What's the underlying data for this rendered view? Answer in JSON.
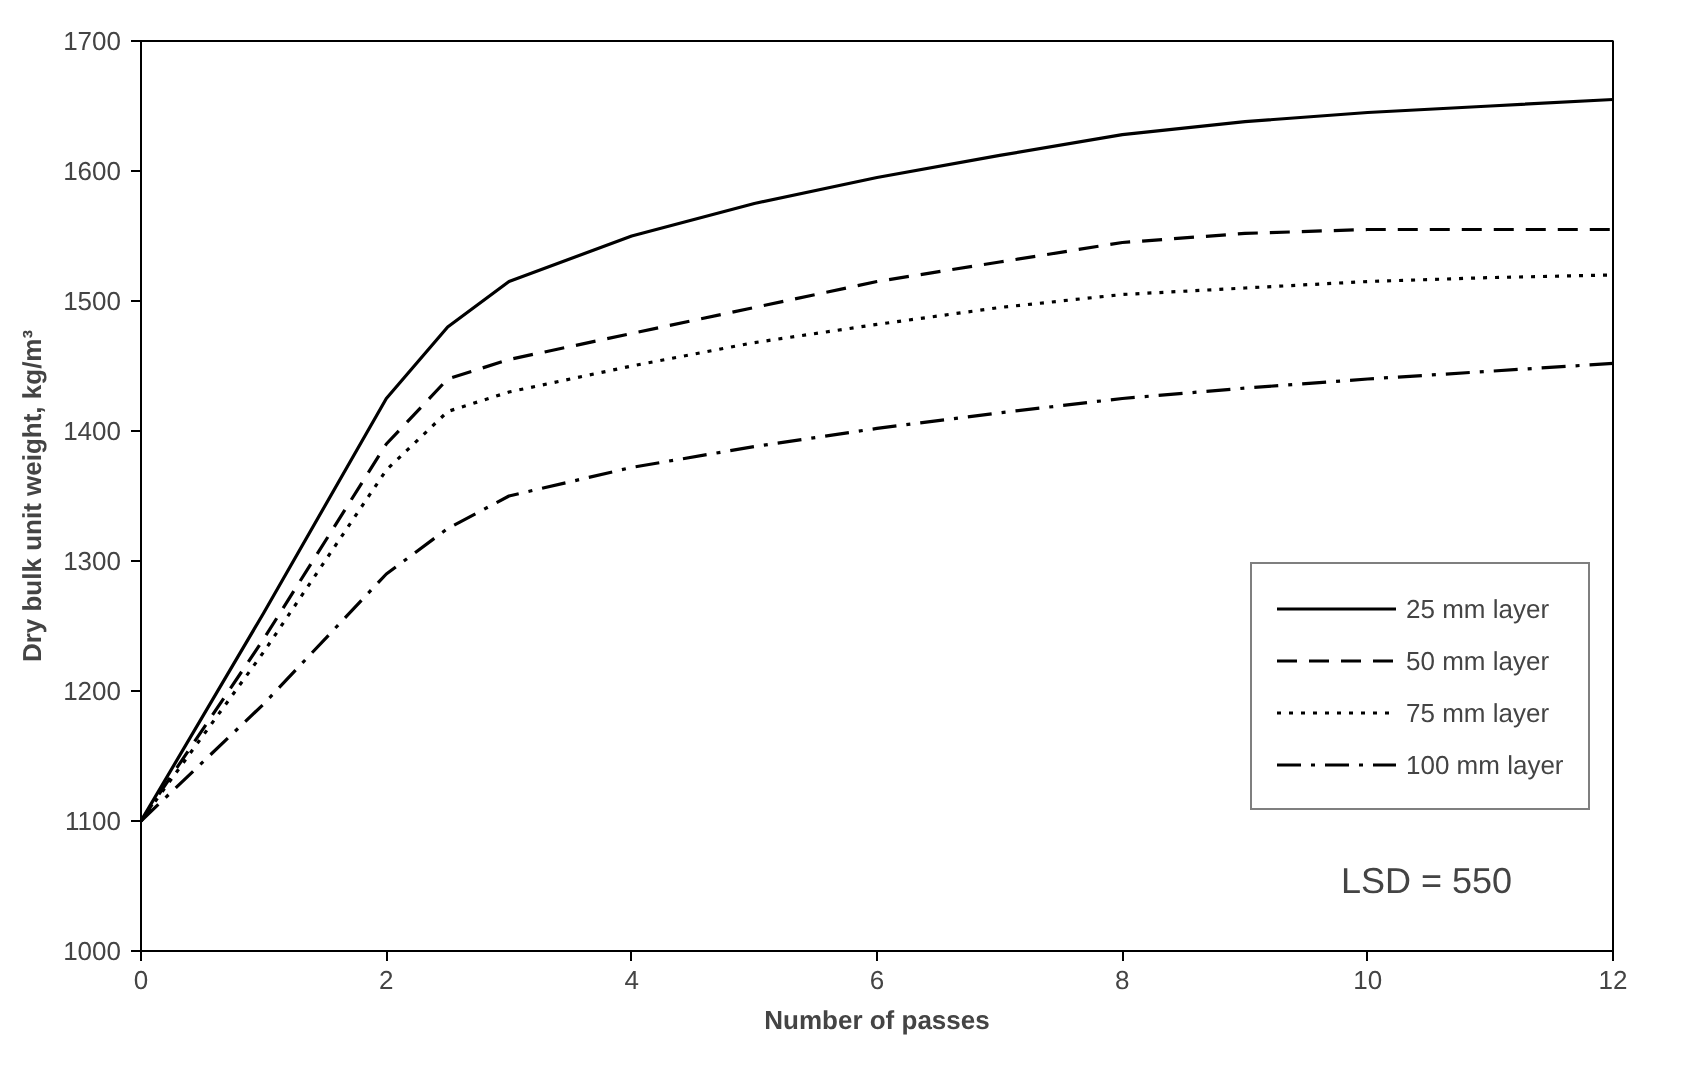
{
  "chart_data": {
    "type": "line",
    "xlabel": "Number of passes",
    "ylabel": "Dry bulk unit weight, kg/m³",
    "xlim": [
      0,
      12
    ],
    "ylim": [
      1000,
      1700
    ],
    "xticks": [
      0,
      2,
      4,
      6,
      8,
      10,
      12
    ],
    "yticks": [
      1000,
      1100,
      1200,
      1300,
      1400,
      1500,
      1600,
      1700
    ],
    "grid": false,
    "legend": "bottom right",
    "marker": "none",
    "annotations": [
      "LSD = 550"
    ],
    "series": [
      {
        "name": "25 mm layer",
        "color": "#000000",
        "line_style": "solid",
        "x": [
          0,
          1,
          2,
          2.5,
          3,
          4,
          5,
          6,
          7,
          8,
          9,
          10,
          11,
          12
        ],
        "values": [
          1100,
          1260,
          1425,
          1480,
          1515,
          1550,
          1575,
          1595,
          1612,
          1628,
          1638,
          1645,
          1650,
          1655
        ]
      },
      {
        "name": "50 mm layer",
        "color": "#000000",
        "line_style": "dashed",
        "x": [
          0,
          1,
          2,
          2.5,
          3,
          4,
          5,
          6,
          7,
          8,
          9,
          10,
          11,
          12
        ],
        "values": [
          1100,
          1240,
          1390,
          1440,
          1455,
          1475,
          1495,
          1515,
          1530,
          1545,
          1552,
          1555,
          1555,
          1555
        ]
      },
      {
        "name": "75 mm layer",
        "color": "#000000",
        "line_style": "dotted",
        "x": [
          0,
          1,
          2,
          2.5,
          3,
          4,
          5,
          6,
          7,
          8,
          9,
          10,
          11,
          12
        ],
        "values": [
          1100,
          1230,
          1370,
          1415,
          1430,
          1450,
          1468,
          1482,
          1495,
          1505,
          1510,
          1515,
          1518,
          1520
        ]
      },
      {
        "name": "100 mm layer",
        "color": "#000000",
        "line_style": "dashdot",
        "x": [
          0,
          1,
          2,
          2.5,
          3,
          4,
          5,
          6,
          7,
          8,
          9,
          10,
          11,
          12
        ],
        "values": [
          1100,
          1190,
          1290,
          1325,
          1350,
          1372,
          1388,
          1402,
          1414,
          1425,
          1433,
          1440,
          1446,
          1452
        ]
      }
    ]
  }
}
